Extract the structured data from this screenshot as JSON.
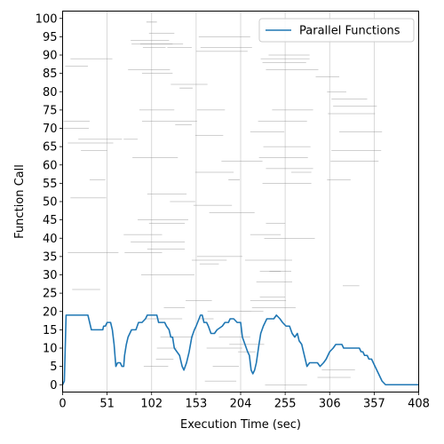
{
  "chart_data": {
    "type": "line",
    "xlabel": "Execution Time (sec)",
    "ylabel": "Function Call",
    "xlim": [
      0,
      408
    ],
    "ylim": [
      -2,
      102
    ],
    "xticks": [
      0,
      51,
      102,
      153,
      204,
      255,
      306,
      357,
      408
    ],
    "yticks": [
      0,
      5,
      10,
      15,
      20,
      25,
      30,
      35,
      40,
      45,
      50,
      55,
      60,
      65,
      70,
      75,
      80,
      85,
      90,
      95,
      100
    ],
    "grid": "vertical",
    "legend_position": "top-right",
    "series": [
      {
        "name": "Parallel Functions",
        "color": "#1f77b4",
        "points": [
          [
            0,
            0
          ],
          [
            2,
            1
          ],
          [
            4,
            19
          ],
          [
            10,
            19
          ],
          [
            20,
            19
          ],
          [
            29,
            19
          ],
          [
            31,
            17
          ],
          [
            33,
            15
          ],
          [
            40,
            15
          ],
          [
            46,
            15
          ],
          [
            47,
            16
          ],
          [
            49,
            16
          ],
          [
            51,
            17
          ],
          [
            55,
            17
          ],
          [
            57,
            15
          ],
          [
            59,
            11
          ],
          [
            61,
            5
          ],
          [
            63,
            6
          ],
          [
            66,
            6
          ],
          [
            68,
            5
          ],
          [
            70,
            5
          ],
          [
            71,
            8
          ],
          [
            73,
            11
          ],
          [
            75,
            13
          ],
          [
            79,
            15
          ],
          [
            84,
            15
          ],
          [
            87,
            17
          ],
          [
            91,
            17
          ],
          [
            95,
            18
          ],
          [
            97,
            19
          ],
          [
            108,
            19
          ],
          [
            110,
            17
          ],
          [
            117,
            17
          ],
          [
            119,
            16
          ],
          [
            122,
            15
          ],
          [
            124,
            13
          ],
          [
            126,
            13
          ],
          [
            128,
            10
          ],
          [
            131,
            9
          ],
          [
            134,
            8
          ],
          [
            137,
            5
          ],
          [
            139,
            4
          ],
          [
            142,
            6
          ],
          [
            145,
            9
          ],
          [
            148,
            13
          ],
          [
            151,
            15
          ],
          [
            153,
            16
          ],
          [
            158,
            19
          ],
          [
            160,
            19
          ],
          [
            162,
            17
          ],
          [
            165,
            17
          ],
          [
            167,
            16
          ],
          [
            170,
            14
          ],
          [
            174,
            14
          ],
          [
            177,
            15
          ],
          [
            183,
            16
          ],
          [
            186,
            17
          ],
          [
            190,
            17
          ],
          [
            192,
            18
          ],
          [
            196,
            18
          ],
          [
            200,
            17
          ],
          [
            204,
            17
          ],
          [
            206,
            13
          ],
          [
            209,
            11
          ],
          [
            212,
            9
          ],
          [
            214,
            8
          ],
          [
            216,
            4
          ],
          [
            218,
            3
          ],
          [
            220,
            4
          ],
          [
            222,
            6
          ],
          [
            225,
            11
          ],
          [
            227,
            14
          ],
          [
            230,
            16
          ],
          [
            234,
            18
          ],
          [
            237,
            18
          ],
          [
            242,
            18
          ],
          [
            245,
            19
          ],
          [
            249,
            18
          ],
          [
            252,
            17
          ],
          [
            256,
            16
          ],
          [
            260,
            16
          ],
          [
            263,
            14
          ],
          [
            266,
            13
          ],
          [
            269,
            14
          ],
          [
            271,
            12
          ],
          [
            274,
            11
          ],
          [
            276,
            9
          ],
          [
            278,
            7
          ],
          [
            280,
            5
          ],
          [
            283,
            6
          ],
          [
            285,
            6
          ],
          [
            292,
            6
          ],
          [
            295,
            5
          ],
          [
            299,
            6
          ],
          [
            302,
            7
          ],
          [
            304,
            8
          ],
          [
            306,
            9
          ],
          [
            310,
            10
          ],
          [
            313,
            11
          ],
          [
            320,
            11
          ],
          [
            322,
            10
          ],
          [
            328,
            10
          ],
          [
            340,
            10
          ],
          [
            342,
            9
          ],
          [
            344,
            9
          ],
          [
            346,
            8
          ],
          [
            349,
            8
          ],
          [
            351,
            7
          ],
          [
            354,
            7
          ],
          [
            356,
            6
          ],
          [
            358,
            5
          ],
          [
            360,
            4
          ],
          [
            362,
            3
          ],
          [
            364,
            2
          ],
          [
            366,
            1
          ],
          [
            370,
            0
          ],
          [
            408,
            0
          ]
        ]
      }
    ],
    "background_segments": [
      [
        3,
        29,
        87
      ],
      [
        9,
        57,
        89
      ],
      [
        1,
        31,
        72
      ],
      [
        6,
        58,
        66
      ],
      [
        21,
        51,
        64
      ],
      [
        31,
        49,
        56
      ],
      [
        1,
        30,
        70
      ],
      [
        9,
        50,
        51
      ],
      [
        6,
        64,
        36
      ],
      [
        11,
        43,
        26
      ],
      [
        18,
        68,
        67
      ],
      [
        96,
        108,
        99
      ],
      [
        99,
        128,
        96
      ],
      [
        78,
        122,
        94
      ],
      [
        89,
        138,
        93
      ],
      [
        79,
        126,
        93
      ],
      [
        92,
        118,
        92
      ],
      [
        120,
        148,
        92
      ],
      [
        156,
        215,
        95
      ],
      [
        158,
        217,
        92
      ],
      [
        153,
        212,
        91
      ],
      [
        75,
        123,
        86
      ],
      [
        91,
        126,
        85
      ],
      [
        124,
        166,
        82
      ],
      [
        134,
        149,
        81
      ],
      [
        88,
        128,
        75
      ],
      [
        154,
        186,
        75
      ],
      [
        129,
        148,
        71
      ],
      [
        91,
        154,
        72
      ],
      [
        70,
        86,
        67
      ],
      [
        152,
        184,
        68
      ],
      [
        80,
        132,
        62
      ],
      [
        97,
        142,
        52
      ],
      [
        150,
        194,
        49
      ],
      [
        123,
        152,
        50
      ],
      [
        86,
        144,
        45
      ],
      [
        99,
        140,
        44
      ],
      [
        70,
        114,
        41
      ],
      [
        78,
        140,
        39
      ],
      [
        97,
        140,
        37
      ],
      [
        71,
        114,
        36
      ],
      [
        90,
        151,
        30
      ],
      [
        157,
        179,
        33
      ],
      [
        148,
        188,
        34
      ],
      [
        154,
        206,
        35
      ],
      [
        215,
        250,
        41
      ],
      [
        168,
        220,
        47
      ],
      [
        152,
        196,
        58
      ],
      [
        190,
        203,
        56
      ],
      [
        182,
        229,
        61
      ],
      [
        215,
        254,
        69
      ],
      [
        229,
        279,
        88
      ],
      [
        227,
        283,
        89
      ],
      [
        236,
        283,
        90
      ],
      [
        233,
        293,
        86
      ],
      [
        240,
        287,
        75
      ],
      [
        224,
        280,
        72
      ],
      [
        230,
        284,
        65
      ],
      [
        225,
        281,
        62
      ],
      [
        233,
        287,
        59
      ],
      [
        229,
        285,
        55
      ],
      [
        262,
        285,
        58
      ],
      [
        233,
        255,
        44
      ],
      [
        231,
        289,
        40
      ],
      [
        209,
        263,
        34
      ],
      [
        226,
        262,
        31
      ],
      [
        237,
        250,
        31
      ],
      [
        222,
        263,
        28
      ],
      [
        226,
        255,
        24
      ],
      [
        215,
        256,
        23
      ],
      [
        217,
        267,
        21
      ],
      [
        204,
        230,
        20
      ],
      [
        290,
        317,
        84
      ],
      [
        303,
        325,
        80
      ],
      [
        308,
        349,
        78
      ],
      [
        310,
        360,
        76
      ],
      [
        304,
        358,
        74
      ],
      [
        317,
        366,
        69
      ],
      [
        308,
        365,
        64
      ],
      [
        307,
        362,
        61
      ],
      [
        303,
        330,
        56
      ],
      [
        297,
        335,
        4
      ],
      [
        292,
        330,
        2
      ],
      [
        321,
        340,
        27
      ],
      [
        191,
        231,
        11
      ],
      [
        201,
        221,
        9
      ],
      [
        166,
        216,
        20
      ],
      [
        179,
        215,
        13
      ],
      [
        165,
        206,
        10
      ],
      [
        172,
        202,
        5
      ],
      [
        163,
        199,
        1
      ],
      [
        232,
        280,
        0
      ],
      [
        157,
        173,
        18
      ],
      [
        141,
        171,
        23
      ],
      [
        116,
        140,
        21
      ],
      [
        94,
        137,
        18
      ],
      [
        112,
        150,
        13
      ],
      [
        108,
        131,
        10
      ],
      [
        107,
        127,
        7
      ],
      [
        93,
        121,
        5
      ]
    ]
  }
}
